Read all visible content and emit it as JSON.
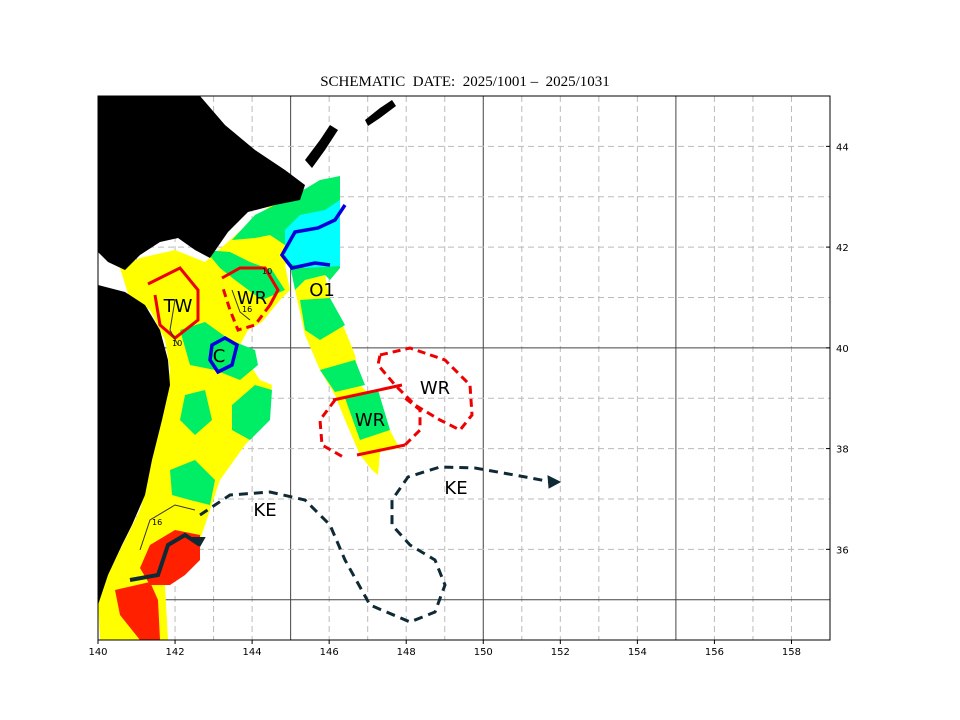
{
  "map": {
    "title": "SCHEMATIC  DATE:  2025/1001 –  2025/1031",
    "xlim": [
      140,
      159
    ],
    "ylim": [
      34.2,
      45
    ],
    "xticks": [
      140,
      142,
      144,
      146,
      148,
      150,
      152,
      154,
      156,
      158
    ],
    "yticks": [
      36,
      38,
      40,
      42,
      44
    ],
    "labels": [
      "TW",
      "WR",
      "C",
      "O1",
      "WR",
      "WR",
      "KE",
      "KE"
    ],
    "contour_labels": [
      "10",
      "16",
      "10",
      "16"
    ]
  }
}
